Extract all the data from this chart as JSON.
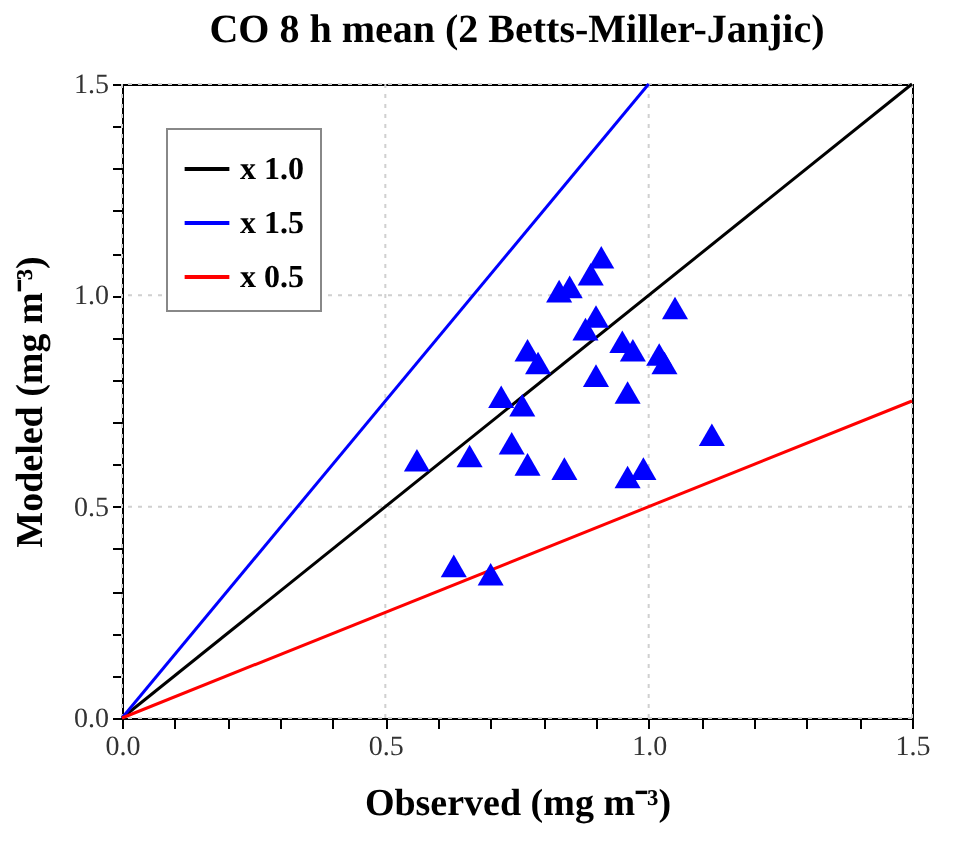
{
  "chart_data": {
    "type": "scatter",
    "title": "CO 8 h mean (2 Betts-Miller-Janjic)",
    "xlabel": "Observed (mg m⁻³)",
    "ylabel": "Modeled (mg m⁻³)",
    "xlim": [
      0,
      1.5
    ],
    "ylim": [
      0,
      1.5
    ],
    "xticks": [
      {
        "value": 0,
        "label": "0.0"
      },
      {
        "value": 0.1,
        "label": null
      },
      {
        "value": 0.2,
        "label": null
      },
      {
        "value": 0.3,
        "label": null
      },
      {
        "value": 0.4,
        "label": null
      },
      {
        "value": 0.5,
        "label": "0.5"
      },
      {
        "value": 0.6,
        "label": null
      },
      {
        "value": 0.7,
        "label": null
      },
      {
        "value": 0.8,
        "label": null
      },
      {
        "value": 0.9,
        "label": null
      },
      {
        "value": 1,
        "label": "1.0"
      },
      {
        "value": 1.1,
        "label": null
      },
      {
        "value": 1.2,
        "label": null
      },
      {
        "value": 1.3,
        "label": null
      },
      {
        "value": 1.4,
        "label": null
      },
      {
        "value": 1.5,
        "label": "1.5"
      }
    ],
    "yticks": [
      {
        "value": 0,
        "label": "0.0"
      },
      {
        "value": 0.1,
        "label": null
      },
      {
        "value": 0.2,
        "label": null
      },
      {
        "value": 0.3,
        "label": null
      },
      {
        "value": 0.4,
        "label": null
      },
      {
        "value": 0.5,
        "label": "0.5"
      },
      {
        "value": 0.6,
        "label": null
      },
      {
        "value": 0.7,
        "label": null
      },
      {
        "value": 0.8,
        "label": null
      },
      {
        "value": 0.9,
        "label": null
      },
      {
        "value": 1,
        "label": "1.0"
      },
      {
        "value": 1.1,
        "label": null
      },
      {
        "value": 1.2,
        "label": null
      },
      {
        "value": 1.3,
        "label": null
      },
      {
        "value": 1.4,
        "label": null
      },
      {
        "value": 1.5,
        "label": "1.5"
      }
    ],
    "grid": true,
    "legend": "top left",
    "series": [
      {
        "name": "x 1.0",
        "type": "line",
        "color": "#000000",
        "x": [
          0,
          1.5
        ],
        "values": [
          0,
          1.5
        ]
      },
      {
        "name": "x 1.5",
        "type": "line",
        "color": "#0000ff",
        "x": [
          0,
          1
        ],
        "values": [
          0,
          1.5
        ]
      },
      {
        "name": "x 0.5",
        "type": "line",
        "color": "#ff0000",
        "x": [
          0,
          1.5
        ],
        "values": [
          0,
          0.75
        ]
      },
      {
        "marker": "triangle",
        "color": "#0000ff",
        "x": [
          0.56,
          0.66,
          0.63,
          0.7,
          0.72,
          0.74,
          0.76,
          0.77,
          0.77,
          0.79,
          0.84,
          0.83,
          0.85,
          0.89,
          0.91,
          0.88,
          0.9,
          0.9,
          0.95,
          0.97,
          0.96,
          0.96,
          0.99,
          1.02,
          1.03,
          1.05,
          1.12
        ],
        "values": [
          0.61,
          0.62,
          0.36,
          0.34,
          0.76,
          0.65,
          0.74,
          0.6,
          0.87,
          0.84,
          0.59,
          1.01,
          1.02,
          1.05,
          1.09,
          0.92,
          0.95,
          0.81,
          0.89,
          0.87,
          0.77,
          0.57,
          0.59,
          0.86,
          0.84,
          0.97,
          0.67
        ]
      }
    ]
  }
}
